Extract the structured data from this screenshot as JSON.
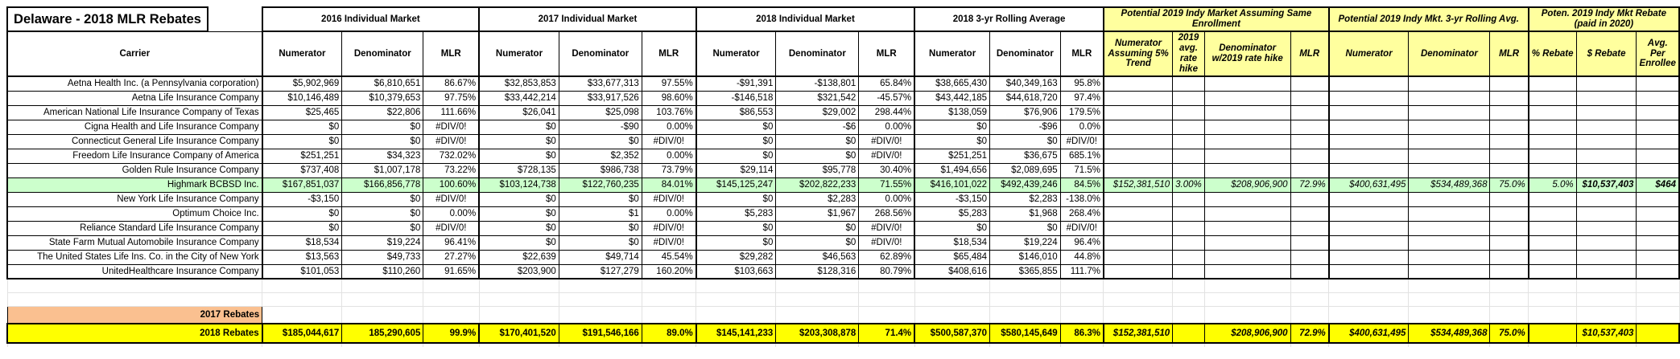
{
  "title": "Delaware - 2018 MLR Rebates",
  "carrier_header": "Carrier",
  "groups": [
    {
      "label": "2016 Individual Market",
      "style": "white",
      "cols": [
        "Numerator",
        "Denominator",
        "MLR"
      ]
    },
    {
      "label": "2017 Individual Market",
      "style": "white",
      "cols": [
        "Numerator",
        "Denominator",
        "MLR"
      ]
    },
    {
      "label": "2018 Individual Market",
      "style": "white",
      "cols": [
        "Numerator",
        "Denominator",
        "MLR"
      ]
    },
    {
      "label": "2018 3-yr Rolling Average",
      "style": "white",
      "cols": [
        "Numerator",
        "Denominator",
        "MLR"
      ]
    },
    {
      "label": "Potential 2019 Indy Market Assuming Same Enrollment",
      "style": "yellow",
      "cols": [
        "Numerator Assuming 5% Trend",
        "2019 avg. rate hike",
        "Denominator w/2019 rate hike",
        "MLR"
      ]
    },
    {
      "label": "Potential 2019 Indy Mkt. 3-yr Rolling Avg.",
      "style": "yellow",
      "cols": [
        "Numerator",
        "Denominator",
        "MLR"
      ]
    },
    {
      "label": "Poten. 2019 Indy Mkt Rebate (paid in 2020)",
      "style": "yellow",
      "cols": [
        "% Rebate",
        "$ Rebate",
        "Avg. Per Enrollee"
      ]
    }
  ],
  "rows": [
    {
      "carrier": "Aetna Health Inc. (a Pennsylvania corporation)",
      "highlight": false,
      "cells": [
        "$5,902,969",
        "$6,810,651",
        "86.67%",
        "$32,853,853",
        "$33,677,313",
        "97.55%",
        "-$91,391",
        "-$138,801",
        "65.84%",
        "$38,665,430",
        "$40,349,163",
        "95.8%",
        "",
        "",
        "",
        "",
        "",
        "",
        "",
        "",
        "",
        ""
      ],
      "tri": [
        9,
        10,
        11
      ]
    },
    {
      "carrier": "Aetna Life Insurance Company",
      "highlight": false,
      "cells": [
        "$10,146,489",
        "$10,379,653",
        "97.75%",
        "$33,442,214",
        "$33,917,526",
        "98.60%",
        "-$146,518",
        "$321,542",
        "-45.57%",
        "$43,442,185",
        "$44,618,720",
        "97.4%",
        "",
        "",
        "",
        "",
        "",
        "",
        "",
        "",
        "",
        ""
      ],
      "tri": [
        9,
        10,
        11
      ]
    },
    {
      "carrier": "American National Life Insurance Company of Texas",
      "highlight": false,
      "cells": [
        "$25,465",
        "$22,806",
        "111.66%",
        "$26,041",
        "$25,098",
        "103.76%",
        "$86,553",
        "$29,002",
        "298.44%",
        "$138,059",
        "$76,906",
        "179.5%",
        "",
        "",
        "",
        "",
        "",
        "",
        "",
        "",
        "",
        ""
      ],
      "tri": [
        9,
        10,
        11
      ]
    },
    {
      "carrier": "Cigna Health and Life Insurance Company",
      "highlight": false,
      "cells": [
        "$0",
        "$0",
        "#DIV/0!",
        "$0",
        "-$90",
        "0.00%",
        "$0",
        "-$6",
        "0.00%",
        "$0",
        "-$96",
        "0.0%",
        "",
        "",
        "",
        "",
        "",
        "",
        "",
        "",
        "",
        ""
      ],
      "tri": [
        2,
        9,
        10,
        11
      ]
    },
    {
      "carrier": "Connecticut General Life Insurance Company",
      "highlight": false,
      "cells": [
        "$0",
        "$0",
        "#DIV/0!",
        "$0",
        "$0",
        "#DIV/0!",
        "$0",
        "$0",
        "#DIV/0!",
        "$0",
        "$0",
        "#DIV/0!",
        "",
        "",
        "",
        "",
        "",
        "",
        "",
        "",
        "",
        ""
      ],
      "tri": [
        2,
        5,
        8,
        9,
        10,
        11
      ]
    },
    {
      "carrier": "Freedom Life Insurance Company of America",
      "highlight": false,
      "cells": [
        "$251,251",
        "$34,323",
        "732.02%",
        "$0",
        "$2,352",
        "0.00%",
        "$0",
        "$0",
        "#DIV/0!",
        "$251,251",
        "$36,675",
        "685.1%",
        "",
        "",
        "",
        "",
        "",
        "",
        "",
        "",
        "",
        ""
      ],
      "tri": [
        8,
        9,
        10,
        11
      ]
    },
    {
      "carrier": "Golden Rule Insurance Company",
      "highlight": false,
      "cells": [
        "$737,408",
        "$1,007,178",
        "73.22%",
        "$728,135",
        "$986,738",
        "73.79%",
        "$29,114",
        "$95,778",
        "30.40%",
        "$1,494,656",
        "$2,089,695",
        "71.5%",
        "",
        "",
        "",
        "",
        "",
        "",
        "",
        "",
        "",
        ""
      ],
      "tri": [
        9,
        10,
        11
      ]
    },
    {
      "carrier": "Highmark BCBSD Inc.",
      "highlight": true,
      "cells": [
        "$167,851,037",
        "$166,856,778",
        "100.60%",
        "$103,124,738",
        "$122,760,235",
        "84.01%",
        "$145,125,247",
        "$202,822,233",
        "71.55%",
        "$416,101,022",
        "$492,439,246",
        "84.5%",
        "$152,381,510",
        "3.00%",
        "$208,906,900",
        "72.9%",
        "$400,631,495",
        "$534,489,368",
        "75.0%",
        "5.0%",
        "$10,537,403",
        "$464"
      ],
      "tri": [
        9,
        10,
        11,
        12,
        14,
        15,
        16,
        17,
        18,
        19,
        20,
        21
      ]
    },
    {
      "carrier": "New York Life Insurance Company",
      "highlight": false,
      "cells": [
        "-$3,150",
        "$0",
        "#DIV/0!",
        "$0",
        "$0",
        "#DIV/0!",
        "$0",
        "$2,283",
        "0.00%",
        "-$3,150",
        "$2,283",
        "-138.0%",
        "",
        "",
        "",
        "",
        "",
        "",
        "",
        "",
        "",
        ""
      ],
      "tri": [
        2,
        5,
        9,
        10,
        11
      ]
    },
    {
      "carrier": "Optimum Choice Inc.",
      "highlight": false,
      "cells": [
        "$0",
        "$0",
        "0.00%",
        "$0",
        "$1",
        "0.00%",
        "$5,283",
        "$1,967",
        "268.56%",
        "$5,283",
        "$1,968",
        "268.4%",
        "",
        "",
        "",
        "",
        "",
        "",
        "",
        "",
        "",
        ""
      ],
      "tri": [
        9,
        10,
        11
      ]
    },
    {
      "carrier": "Reliance Standard Life Insurance Company",
      "highlight": false,
      "cells": [
        "$0",
        "$0",
        "#DIV/0!",
        "$0",
        "$0",
        "#DIV/0!",
        "$0",
        "$0",
        "#DIV/0!",
        "$0",
        "$0",
        "#DIV/0!",
        "",
        "",
        "",
        "",
        "",
        "",
        "",
        "",
        "",
        ""
      ],
      "tri": [
        2,
        5,
        8,
        9,
        10,
        11
      ]
    },
    {
      "carrier": "State Farm Mutual Automobile Insurance Company",
      "highlight": false,
      "cells": [
        "$18,534",
        "$19,224",
        "96.41%",
        "$0",
        "$0",
        "#DIV/0!",
        "$0",
        "$0",
        "#DIV/0!",
        "$18,534",
        "$19,224",
        "96.4%",
        "",
        "",
        "",
        "",
        "",
        "",
        "",
        "",
        "",
        ""
      ],
      "tri": [
        5,
        8,
        9,
        10,
        11
      ]
    },
    {
      "carrier": "The United States Life Ins. Co. in the City of New York",
      "highlight": false,
      "cells": [
        "$13,563",
        "$49,733",
        "27.27%",
        "$22,639",
        "$49,714",
        "45.54%",
        "$29,282",
        "$46,563",
        "62.89%",
        "$65,484",
        "$146,010",
        "44.8%",
        "",
        "",
        "",
        "",
        "",
        "",
        "",
        "",
        "",
        ""
      ],
      "tri": [
        9,
        10,
        11
      ]
    },
    {
      "carrier": "UnitedHealthcare Insurance Company",
      "highlight": false,
      "cells": [
        "$101,053",
        "$110,260",
        "91.65%",
        "$203,900",
        "$127,279",
        "160.20%",
        "$103,663",
        "$128,316",
        "80.79%",
        "$408,616",
        "$365,855",
        "111.7%",
        "",
        "",
        "",
        "",
        "",
        "",
        "",
        "",
        "",
        ""
      ],
      "tri": [
        9,
        10,
        11
      ]
    }
  ],
  "summary": {
    "rebates_2017_label": "2017 Rebates",
    "rebates_2018_label": "2018 Rebates",
    "rebates_2018_cells": [
      "$185,044,617",
      "185,290,605",
      "99.9%",
      "$170,401,520",
      "$191,546,166",
      "89.0%",
      "$145,141,233",
      "$203,308,878",
      "71.4%",
      "$500,587,370",
      "$580,145,649",
      "86.3%",
      "$152,381,510",
      "",
      "$208,906,900",
      "72.9%",
      "$400,631,495",
      "$534,489,368",
      "75.0%",
      "",
      "$10,537,403",
      ""
    ],
    "rebates_2018_tri": [
      2,
      5,
      8,
      11,
      12,
      14,
      15,
      16,
      17,
      18,
      20
    ]
  },
  "colors": {
    "header_yellow": "#ffff9e",
    "total_yellow": "#ffff00",
    "highlight_green": "#ccffcc",
    "rebates_orange": "#fac090",
    "indicator_green": "#1e7145",
    "gridline_gray": "#e2e2e2",
    "border_black": "#000000"
  }
}
